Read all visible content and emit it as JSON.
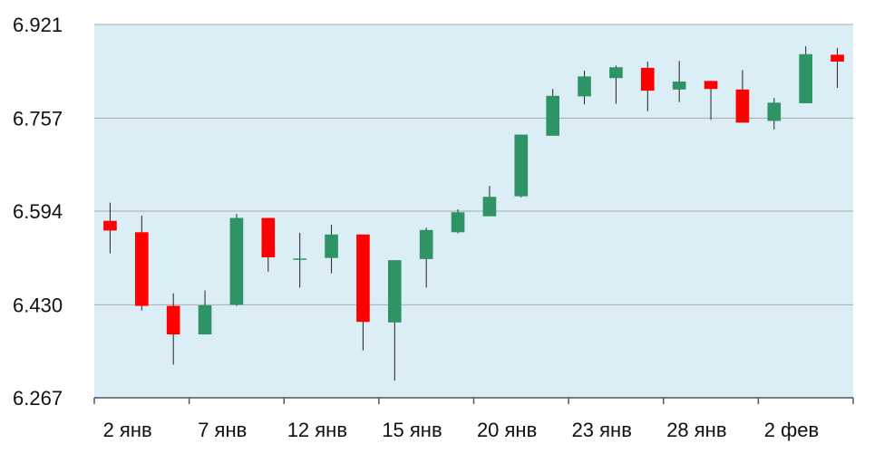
{
  "chart_data": {
    "type": "candlestick",
    "y_axis": {
      "min": 6.267,
      "max": 6.921,
      "ticks": [
        "6.921",
        "6.757",
        "6.594",
        "6.430",
        "6.267"
      ]
    },
    "x_axis": {
      "tick_labels": [
        "2 янв",
        "7 янв",
        "12 янв",
        "15 янв",
        "20 янв",
        "23 янв",
        "28 янв",
        "2 фев"
      ]
    },
    "grid": true,
    "colors": {
      "plot_bg": "#dbeef5",
      "up": "#2e9466",
      "down": "#ff0000",
      "grid": "#a9a9a9",
      "axis": "#555555"
    },
    "candles": [
      {
        "open": 6.577,
        "close": 6.56,
        "high": 6.609,
        "low": 6.52
      },
      {
        "open": 6.557,
        "close": 6.428,
        "high": 6.586,
        "low": 6.42
      },
      {
        "open": 6.428,
        "close": 6.378,
        "high": 6.45,
        "low": 6.325
      },
      {
        "open": 6.378,
        "close": 6.429,
        "high": 6.455,
        "low": 6.378
      },
      {
        "open": 6.43,
        "close": 6.582,
        "high": 6.589,
        "low": 6.428
      },
      {
        "open": 6.582,
        "close": 6.513,
        "high": 6.582,
        "low": 6.488
      },
      {
        "open": 6.511,
        "close": 6.511,
        "high": 6.556,
        "low": 6.46
      },
      {
        "open": 6.512,
        "close": 6.553,
        "high": 6.57,
        "low": 6.485
      },
      {
        "open": 6.553,
        "close": 6.4,
        "high": 6.553,
        "low": 6.35
      },
      {
        "open": 6.399,
        "close": 6.508,
        "high": 6.508,
        "low": 6.297
      },
      {
        "open": 6.51,
        "close": 6.561,
        "high": 6.565,
        "low": 6.46
      },
      {
        "open": 6.557,
        "close": 6.592,
        "high": 6.597,
        "low": 6.555
      },
      {
        "open": 6.585,
        "close": 6.619,
        "high": 6.638,
        "low": 6.585
      },
      {
        "open": 6.62,
        "close": 6.728,
        "high": 6.728,
        "low": 6.618
      },
      {
        "open": 6.726,
        "close": 6.796,
        "high": 6.808,
        "low": 6.726
      },
      {
        "open": 6.795,
        "close": 6.83,
        "high": 6.84,
        "low": 6.781
      },
      {
        "open": 6.827,
        "close": 6.846,
        "high": 6.849,
        "low": 6.782
      },
      {
        "open": 6.845,
        "close": 6.805,
        "high": 6.856,
        "low": 6.769
      },
      {
        "open": 6.807,
        "close": 6.821,
        "high": 6.857,
        "low": 6.785
      },
      {
        "open": 6.822,
        "close": 6.808,
        "high": 6.822,
        "low": 6.754
      },
      {
        "open": 6.807,
        "close": 6.749,
        "high": 6.841,
        "low": 6.749
      },
      {
        "open": 6.752,
        "close": 6.784,
        "high": 6.792,
        "low": 6.737
      },
      {
        "open": 6.783,
        "close": 6.869,
        "high": 6.883,
        "low": 6.783
      },
      {
        "open": 6.868,
        "close": 6.856,
        "high": 6.88,
        "low": 6.81
      }
    ]
  }
}
